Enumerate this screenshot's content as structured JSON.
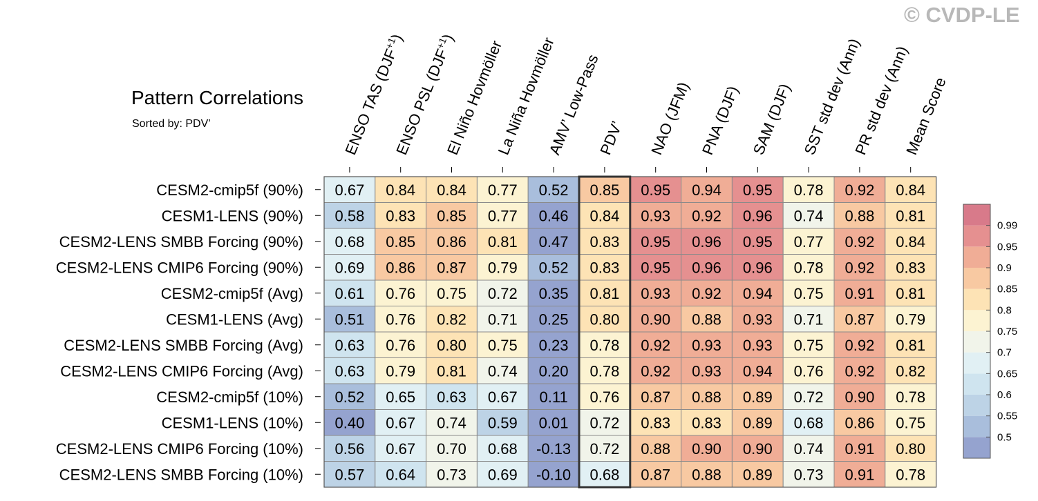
{
  "watermark": "© CVDP-LE",
  "chart_data": {
    "type": "heatmap",
    "title": "Pattern Correlations",
    "subtitle": "Sorted by: PDV’",
    "columns": [
      "ENSO TAS (DJF+1)",
      "ENSO PSL (DJF+1)",
      "El Niño Hovmöller",
      "La Niña Hovmöller",
      "AMV’ Low-Pass",
      "PDV’",
      "NAO (JFM)",
      "PNA (DJF)",
      "SAM (DJF)",
      "SST std dev (Ann)",
      "PR std dev (Ann)",
      "Mean Score"
    ],
    "highlighted_column": "PDV’",
    "rows": [
      {
        "label": "CESM2-cmip5f (90%)",
        "values": [
          0.67,
          0.84,
          0.84,
          0.77,
          0.52,
          0.85,
          0.95,
          0.94,
          0.95,
          0.78,
          0.92,
          0.84
        ]
      },
      {
        "label": "CESM1-LENS (90%)",
        "values": [
          0.58,
          0.83,
          0.85,
          0.77,
          0.46,
          0.84,
          0.93,
          0.92,
          0.96,
          0.74,
          0.88,
          0.81
        ]
      },
      {
        "label": "CESM2-LENS SMBB Forcing (90%)",
        "values": [
          0.68,
          0.85,
          0.86,
          0.81,
          0.47,
          0.83,
          0.95,
          0.96,
          0.95,
          0.77,
          0.92,
          0.84
        ]
      },
      {
        "label": "CESM2-LENS CMIP6 Forcing (90%)",
        "values": [
          0.69,
          0.86,
          0.87,
          0.79,
          0.52,
          0.83,
          0.95,
          0.96,
          0.96,
          0.78,
          0.92,
          0.83
        ]
      },
      {
        "label": "CESM2-cmip5f (Avg)",
        "values": [
          0.61,
          0.76,
          0.75,
          0.72,
          0.35,
          0.81,
          0.93,
          0.92,
          0.94,
          0.75,
          0.91,
          0.81
        ]
      },
      {
        "label": "CESM1-LENS (Avg)",
        "values": [
          0.51,
          0.76,
          0.82,
          0.71,
          0.25,
          0.8,
          0.9,
          0.88,
          0.93,
          0.71,
          0.87,
          0.79
        ]
      },
      {
        "label": "CESM2-LENS SMBB Forcing (Avg)",
        "values": [
          0.63,
          0.76,
          0.8,
          0.75,
          0.23,
          0.78,
          0.92,
          0.93,
          0.93,
          0.75,
          0.92,
          0.81
        ]
      },
      {
        "label": "CESM2-LENS CMIP6 Forcing (Avg)",
        "values": [
          0.63,
          0.79,
          0.81,
          0.74,
          0.2,
          0.78,
          0.92,
          0.93,
          0.94,
          0.76,
          0.92,
          0.82
        ]
      },
      {
        "label": "CESM2-cmip5f (10%)",
        "values": [
          0.52,
          0.65,
          0.63,
          0.67,
          0.11,
          0.76,
          0.87,
          0.88,
          0.89,
          0.72,
          0.9,
          0.78
        ]
      },
      {
        "label": "CESM1-LENS (10%)",
        "values": [
          0.4,
          0.67,
          0.74,
          0.59,
          0.01,
          0.72,
          0.83,
          0.83,
          0.89,
          0.68,
          0.86,
          0.75
        ]
      },
      {
        "label": "CESM2-LENS CMIP6 Forcing (10%)",
        "values": [
          0.56,
          0.67,
          0.7,
          0.68,
          -0.13,
          0.72,
          0.88,
          0.9,
          0.9,
          0.74,
          0.91,
          0.8
        ]
      },
      {
        "label": "CESM2-LENS SMBB Forcing (10%)",
        "values": [
          0.57,
          0.64,
          0.73,
          0.69,
          -0.1,
          0.68,
          0.87,
          0.88,
          0.89,
          0.73,
          0.91,
          0.78
        ]
      }
    ],
    "colorbar": {
      "labels": [
        "0.5",
        "0.55",
        "0.6",
        "0.65",
        "0.7",
        "0.75",
        "0.8",
        "0.85",
        "0.9",
        "0.95",
        "0.99"
      ],
      "thresholds": [
        0.5,
        0.55,
        0.6,
        0.65,
        0.7,
        0.75,
        0.8,
        0.85,
        0.9,
        0.95,
        0.99
      ],
      "colors": [
        "#95a3cf",
        "#a9bedc",
        "#bdd3e6",
        "#cfe4ef",
        "#e1f0f4",
        "#f1f4ea",
        "#fcf3d2",
        "#fde3b5",
        "#f8c9a2",
        "#f0ad96",
        "#e59090",
        "#d87a8a"
      ]
    }
  }
}
